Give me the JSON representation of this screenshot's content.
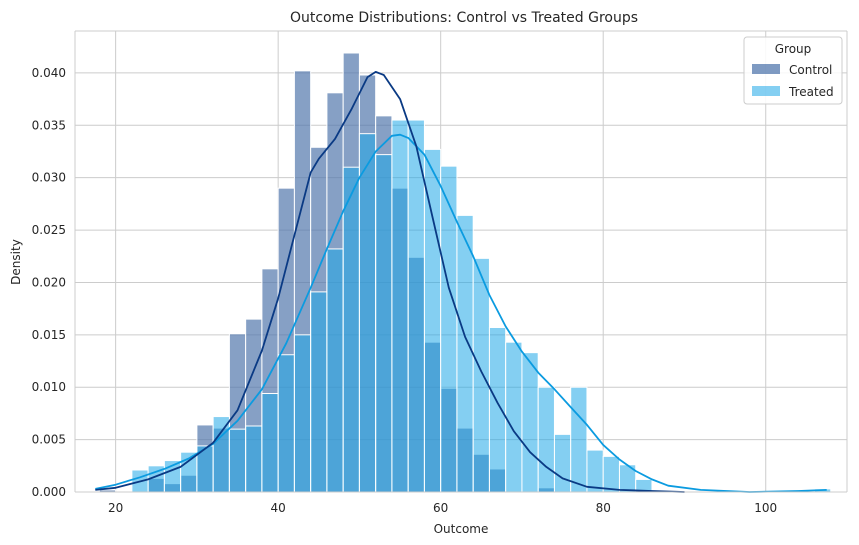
{
  "chart_data": {
    "type": "histogram",
    "title": "Outcome Distributions: Control vs Treated Groups",
    "xlabel": "Outcome",
    "ylabel": "Density",
    "xlim": [
      15,
      110
    ],
    "ylim": [
      0,
      0.044
    ],
    "xticks": [
      20,
      40,
      60,
      80,
      100
    ],
    "yticks": [
      0.0,
      0.005,
      0.01,
      0.015,
      0.02,
      0.025,
      0.03,
      0.035,
      0.04
    ],
    "ytick_labels": [
      "0.000",
      "0.005",
      "0.010",
      "0.015",
      "0.020",
      "0.025",
      "0.030",
      "0.035",
      "0.040"
    ],
    "grid": true,
    "legend": {
      "title": "Group",
      "position": "top-right"
    },
    "bin_edges": [
      18,
      20,
      22,
      24,
      26,
      28,
      30,
      32,
      34,
      36,
      38,
      40,
      42,
      44,
      46,
      48,
      50,
      52,
      54,
      56,
      58,
      60,
      62,
      64,
      66,
      68,
      70,
      72,
      74,
      76,
      78,
      80,
      82,
      84,
      86,
      88
    ],
    "series": [
      {
        "name": "Control",
        "color": "#5378ad",
        "kde_color": "#0a3a84",
        "densities": [
          0.0002,
          0.0,
          0.0,
          0.0013,
          0.0008,
          0.0016,
          0.0064,
          0.0061,
          0.0151,
          0.0165,
          0.0213,
          0.029,
          0.0402,
          0.0329,
          0.0381,
          0.0419,
          0.0398,
          0.0359,
          0.029,
          0.0224,
          0.0143,
          0.0099,
          0.0061,
          0.0036,
          0.0022,
          0.0,
          0.0,
          0.0004,
          0.0,
          0.0,
          0.0,
          0.0,
          0.0,
          0.0,
          0.0
        ],
        "kde": [
          [
            17.5,
            0.0002
          ],
          [
            20,
            0.0004
          ],
          [
            24,
            0.0012
          ],
          [
            28,
            0.0024
          ],
          [
            32,
            0.0047
          ],
          [
            35,
            0.0078
          ],
          [
            38,
            0.0135
          ],
          [
            40,
            0.0185
          ],
          [
            42,
            0.0245
          ],
          [
            44,
            0.0305
          ],
          [
            45,
            0.0318
          ],
          [
            47,
            0.0337
          ],
          [
            49,
            0.0365
          ],
          [
            51,
            0.0396
          ],
          [
            52,
            0.0401
          ],
          [
            53,
            0.0398
          ],
          [
            55,
            0.0375
          ],
          [
            57,
            0.033
          ],
          [
            59,
            0.0262
          ],
          [
            61,
            0.0195
          ],
          [
            63,
            0.0148
          ],
          [
            65,
            0.0115
          ],
          [
            67,
            0.0085
          ],
          [
            69,
            0.0058
          ],
          [
            71,
            0.0038
          ],
          [
            73,
            0.0024
          ],
          [
            75,
            0.0013
          ],
          [
            78,
            0.0005
          ],
          [
            82,
            0.0002
          ],
          [
            86,
            0.0001
          ],
          [
            90,
            0.0
          ]
        ]
      },
      {
        "name": "Treated",
        "color": "#1fa7e8",
        "kde_color": "#0b9be0",
        "densities": [
          0.0,
          0.0,
          0.0021,
          0.0025,
          0.003,
          0.0038,
          0.0044,
          0.0072,
          0.006,
          0.0063,
          0.0094,
          0.0131,
          0.015,
          0.0191,
          0.0232,
          0.031,
          0.0342,
          0.0322,
          0.0355,
          0.0355,
          0.0327,
          0.0311,
          0.0264,
          0.0223,
          0.0157,
          0.0143,
          0.0133,
          0.01,
          0.0055,
          0.01,
          0.004,
          0.0034,
          0.0026,
          0.0012,
          0.0
        ]
      }
    ],
    "treated_tail": {
      "bin": [
        106,
        108
      ],
      "density": 0.0003
    },
    "treated_kde": [
      [
        17.5,
        0.0003
      ],
      [
        20,
        0.0007
      ],
      [
        23,
        0.0014
      ],
      [
        26,
        0.0022
      ],
      [
        29,
        0.0032
      ],
      [
        32,
        0.0046
      ],
      [
        35,
        0.0068
      ],
      [
        38,
        0.0098
      ],
      [
        41,
        0.0142
      ],
      [
        44,
        0.0195
      ],
      [
        46,
        0.0232
      ],
      [
        48,
        0.0268
      ],
      [
        50,
        0.03
      ],
      [
        52,
        0.0325
      ],
      [
        54,
        0.034
      ],
      [
        55,
        0.0341
      ],
      [
        56,
        0.0338
      ],
      [
        58,
        0.0322
      ],
      [
        60,
        0.0292
      ],
      [
        62,
        0.0258
      ],
      [
        64,
        0.0225
      ],
      [
        66,
        0.0188
      ],
      [
        68,
        0.0158
      ],
      [
        70,
        0.0134
      ],
      [
        72,
        0.0114
      ],
      [
        74,
        0.0098
      ],
      [
        76,
        0.0081
      ],
      [
        78,
        0.0064
      ],
      [
        80,
        0.0045
      ],
      [
        82,
        0.0031
      ],
      [
        84,
        0.002
      ],
      [
        86,
        0.0012
      ],
      [
        88,
        0.0006
      ],
      [
        92,
        0.0002
      ],
      [
        98,
        0.0
      ],
      [
        104,
        0.0001
      ],
      [
        107.5,
        0.0002
      ]
    ]
  }
}
